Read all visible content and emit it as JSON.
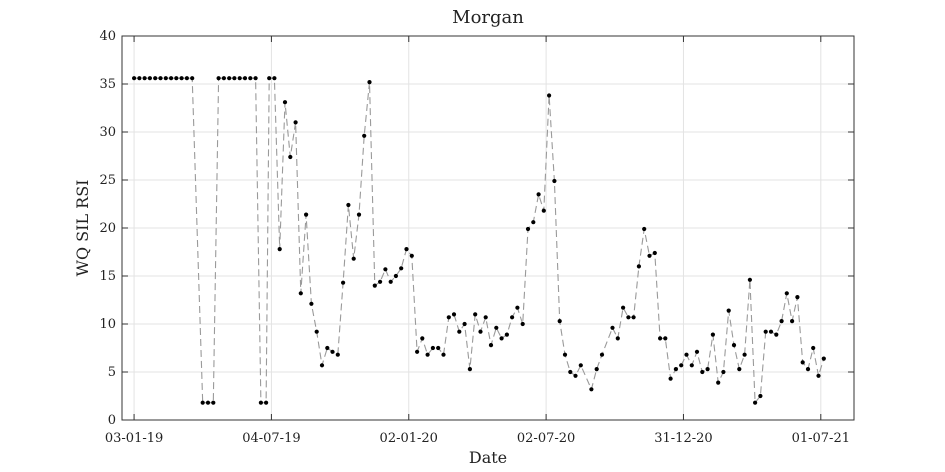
{
  "chart_data": {
    "type": "line",
    "title": "Morgan",
    "xlabel": "Date",
    "ylabel": "WQ SIL RSI",
    "x_axis_type": "date",
    "xlim": [
      "2018-12-18",
      "2021-08-14"
    ],
    "ylim": [
      0,
      40
    ],
    "yticks": [
      0,
      5,
      10,
      15,
      20,
      25,
      30,
      35,
      40
    ],
    "xticks": [
      {
        "date": "2019-01-03",
        "label": "03-01-19"
      },
      {
        "date": "2019-07-04",
        "label": "04-07-19"
      },
      {
        "date": "2020-01-02",
        "label": "02-01-20"
      },
      {
        "date": "2020-07-02",
        "label": "02-07-20"
      },
      {
        "date": "2020-12-31",
        "label": "31-12-20"
      },
      {
        "date": "2021-07-01",
        "label": "01-07-21"
      }
    ],
    "grid": true,
    "series": [
      {
        "line_color": "#9a9a9a",
        "marker_color": "#000000",
        "points": [
          {
            "x": "2019-01-03",
            "y": 35.6
          },
          {
            "x": "2019-01-10",
            "y": 35.6
          },
          {
            "x": "2019-01-17",
            "y": 35.6
          },
          {
            "x": "2019-01-24",
            "y": 35.6
          },
          {
            "x": "2019-01-31",
            "y": 35.6
          },
          {
            "x": "2019-02-07",
            "y": 35.6
          },
          {
            "x": "2019-02-14",
            "y": 35.6
          },
          {
            "x": "2019-02-21",
            "y": 35.6
          },
          {
            "x": "2019-02-28",
            "y": 35.6
          },
          {
            "x": "2019-03-07",
            "y": 35.6
          },
          {
            "x": "2019-03-14",
            "y": 35.6
          },
          {
            "x": "2019-03-21",
            "y": 35.6
          },
          {
            "x": "2019-04-04",
            "y": 1.8
          },
          {
            "x": "2019-04-11",
            "y": 1.8
          },
          {
            "x": "2019-04-18",
            "y": 1.8
          },
          {
            "x": "2019-04-25",
            "y": 35.6
          },
          {
            "x": "2019-05-02",
            "y": 35.6
          },
          {
            "x": "2019-05-09",
            "y": 35.6
          },
          {
            "x": "2019-05-16",
            "y": 35.6
          },
          {
            "x": "2019-05-23",
            "y": 35.6
          },
          {
            "x": "2019-05-30",
            "y": 35.6
          },
          {
            "x": "2019-06-06",
            "y": 35.6
          },
          {
            "x": "2019-06-13",
            "y": 35.6
          },
          {
            "x": "2019-06-20",
            "y": 1.8
          },
          {
            "x": "2019-06-27",
            "y": 1.8
          },
          {
            "x": "2019-07-01",
            "y": 35.6
          },
          {
            "x": "2019-07-08",
            "y": 35.6
          },
          {
            "x": "2019-07-15",
            "y": 17.8
          },
          {
            "x": "2019-07-22",
            "y": 33.1
          },
          {
            "x": "2019-07-29",
            "y": 27.4
          },
          {
            "x": "2019-08-05",
            "y": 31.0
          },
          {
            "x": "2019-08-12",
            "y": 13.2
          },
          {
            "x": "2019-08-19",
            "y": 21.4
          },
          {
            "x": "2019-08-26",
            "y": 12.1
          },
          {
            "x": "2019-09-02",
            "y": 9.2
          },
          {
            "x": "2019-09-09",
            "y": 5.7
          },
          {
            "x": "2019-09-16",
            "y": 7.5
          },
          {
            "x": "2019-09-23",
            "y": 7.1
          },
          {
            "x": "2019-09-30",
            "y": 6.8
          },
          {
            "x": "2019-10-07",
            "y": 14.3
          },
          {
            "x": "2019-10-14",
            "y": 22.4
          },
          {
            "x": "2019-10-21",
            "y": 16.8
          },
          {
            "x": "2019-10-28",
            "y": 21.4
          },
          {
            "x": "2019-11-04",
            "y": 29.6
          },
          {
            "x": "2019-11-11",
            "y": 35.2
          },
          {
            "x": "2019-11-18",
            "y": 14.0
          },
          {
            "x": "2019-11-25",
            "y": 14.4
          },
          {
            "x": "2019-12-02",
            "y": 15.7
          },
          {
            "x": "2019-12-09",
            "y": 14.4
          },
          {
            "x": "2019-12-16",
            "y": 15.0
          },
          {
            "x": "2019-12-23",
            "y": 15.8
          },
          {
            "x": "2019-12-30",
            "y": 17.8
          },
          {
            "x": "2020-01-06",
            "y": 17.1
          },
          {
            "x": "2020-01-13",
            "y": 7.1
          },
          {
            "x": "2020-01-20",
            "y": 8.5
          },
          {
            "x": "2020-01-27",
            "y": 6.8
          },
          {
            "x": "2020-02-03",
            "y": 7.5
          },
          {
            "x": "2020-02-10",
            "y": 7.5
          },
          {
            "x": "2020-02-17",
            "y": 6.8
          },
          {
            "x": "2020-02-24",
            "y": 10.7
          },
          {
            "x": "2020-03-02",
            "y": 11.0
          },
          {
            "x": "2020-03-09",
            "y": 9.2
          },
          {
            "x": "2020-03-16",
            "y": 10.0
          },
          {
            "x": "2020-03-23",
            "y": 5.3
          },
          {
            "x": "2020-03-30",
            "y": 11.0
          },
          {
            "x": "2020-04-06",
            "y": 9.2
          },
          {
            "x": "2020-04-13",
            "y": 10.7
          },
          {
            "x": "2020-04-20",
            "y": 7.8
          },
          {
            "x": "2020-04-27",
            "y": 9.6
          },
          {
            "x": "2020-05-04",
            "y": 8.5
          },
          {
            "x": "2020-05-11",
            "y": 8.9
          },
          {
            "x": "2020-05-18",
            "y": 10.7
          },
          {
            "x": "2020-05-25",
            "y": 11.7
          },
          {
            "x": "2020-06-01",
            "y": 10.0
          },
          {
            "x": "2020-06-08",
            "y": 19.9
          },
          {
            "x": "2020-06-15",
            "y": 20.6
          },
          {
            "x": "2020-06-22",
            "y": 23.5
          },
          {
            "x": "2020-06-29",
            "y": 21.8
          },
          {
            "x": "2020-07-06",
            "y": 33.8
          },
          {
            "x": "2020-07-13",
            "y": 24.9
          },
          {
            "x": "2020-07-20",
            "y": 10.3
          },
          {
            "x": "2020-07-27",
            "y": 6.8
          },
          {
            "x": "2020-08-03",
            "y": 5.0
          },
          {
            "x": "2020-08-10",
            "y": 4.6
          },
          {
            "x": "2020-08-17",
            "y": 5.7
          },
          {
            "x": "2020-08-31",
            "y": 3.2
          },
          {
            "x": "2020-09-07",
            "y": 5.3
          },
          {
            "x": "2020-09-14",
            "y": 6.8
          },
          {
            "x": "2020-09-28",
            "y": 9.6
          },
          {
            "x": "2020-10-05",
            "y": 8.5
          },
          {
            "x": "2020-10-12",
            "y": 11.7
          },
          {
            "x": "2020-10-19",
            "y": 10.7
          },
          {
            "x": "2020-10-26",
            "y": 10.7
          },
          {
            "x": "2020-11-02",
            "y": 16.0
          },
          {
            "x": "2020-11-09",
            "y": 19.9
          },
          {
            "x": "2020-11-16",
            "y": 17.1
          },
          {
            "x": "2020-11-23",
            "y": 17.4
          },
          {
            "x": "2020-11-30",
            "y": 8.5
          },
          {
            "x": "2020-12-07",
            "y": 8.5
          },
          {
            "x": "2020-12-14",
            "y": 4.3
          },
          {
            "x": "2020-12-21",
            "y": 5.3
          },
          {
            "x": "2020-12-28",
            "y": 5.7
          },
          {
            "x": "2021-01-04",
            "y": 6.8
          },
          {
            "x": "2021-01-11",
            "y": 5.7
          },
          {
            "x": "2021-01-18",
            "y": 7.1
          },
          {
            "x": "2021-01-25",
            "y": 5.0
          },
          {
            "x": "2021-02-01",
            "y": 5.3
          },
          {
            "x": "2021-02-08",
            "y": 8.9
          },
          {
            "x": "2021-02-15",
            "y": 3.9
          },
          {
            "x": "2021-02-22",
            "y": 5.0
          },
          {
            "x": "2021-03-01",
            "y": 11.4
          },
          {
            "x": "2021-03-08",
            "y": 7.8
          },
          {
            "x": "2021-03-15",
            "y": 5.3
          },
          {
            "x": "2021-03-22",
            "y": 6.8
          },
          {
            "x": "2021-03-29",
            "y": 14.6
          },
          {
            "x": "2021-04-05",
            "y": 1.8
          },
          {
            "x": "2021-04-12",
            "y": 2.5
          },
          {
            "x": "2021-04-19",
            "y": 9.2
          },
          {
            "x": "2021-04-26",
            "y": 9.2
          },
          {
            "x": "2021-05-03",
            "y": 8.9
          },
          {
            "x": "2021-05-10",
            "y": 10.3
          },
          {
            "x": "2021-05-17",
            "y": 13.2
          },
          {
            "x": "2021-05-24",
            "y": 10.3
          },
          {
            "x": "2021-05-31",
            "y": 12.8
          },
          {
            "x": "2021-06-07",
            "y": 6.0
          },
          {
            "x": "2021-06-14",
            "y": 5.3
          },
          {
            "x": "2021-06-21",
            "y": 7.5
          },
          {
            "x": "2021-06-28",
            "y": 4.6
          },
          {
            "x": "2021-07-05",
            "y": 6.4
          }
        ]
      }
    ]
  }
}
